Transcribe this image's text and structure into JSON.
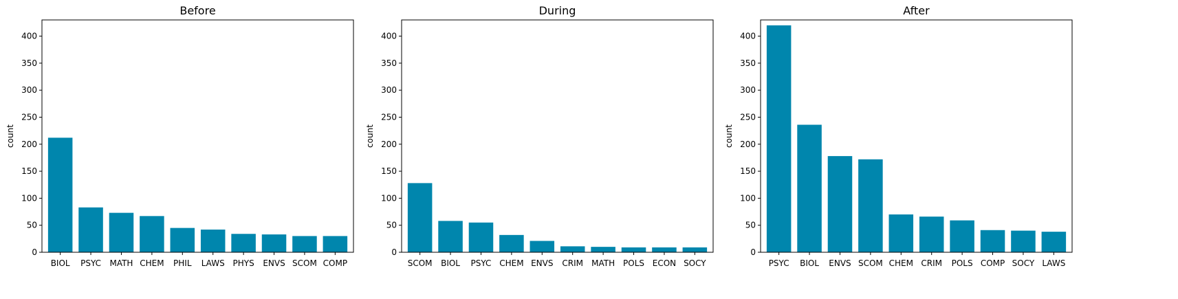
{
  "colors": {
    "bar": "#0086ad"
  },
  "chart_data": [
    {
      "type": "bar",
      "title": "Before",
      "ylabel": "count",
      "ylim": [
        0,
        430
      ],
      "yticks": [
        0,
        50,
        100,
        150,
        200,
        250,
        300,
        350,
        400
      ],
      "categories": [
        "BIOL",
        "PSYC",
        "MATH",
        "CHEM",
        "PHIL",
        "LAWS",
        "PHYS",
        "ENVS",
        "SCOM",
        "COMP"
      ],
      "values": [
        212,
        83,
        73,
        67,
        45,
        42,
        34,
        33,
        30,
        30
      ]
    },
    {
      "type": "bar",
      "title": "During",
      "ylabel": "count",
      "ylim": [
        0,
        430
      ],
      "yticks": [
        0,
        50,
        100,
        150,
        200,
        250,
        300,
        350,
        400
      ],
      "categories": [
        "SCOM",
        "BIOL",
        "PSYC",
        "CHEM",
        "ENVS",
        "CRIM",
        "MATH",
        "POLS",
        "ECON",
        "SOCY"
      ],
      "values": [
        128,
        58,
        55,
        32,
        21,
        11,
        10,
        9,
        9,
        9
      ]
    },
    {
      "type": "bar",
      "title": "After",
      "ylabel": "count",
      "ylim": [
        0,
        430
      ],
      "yticks": [
        0,
        50,
        100,
        150,
        200,
        250,
        300,
        350,
        400
      ],
      "categories": [
        "PSYC",
        "BIOL",
        "ENVS",
        "SCOM",
        "CHEM",
        "CRIM",
        "POLS",
        "COMP",
        "SOCY",
        "LAWS"
      ],
      "values": [
        420,
        236,
        178,
        172,
        70,
        66,
        59,
        41,
        40,
        38
      ]
    }
  ]
}
